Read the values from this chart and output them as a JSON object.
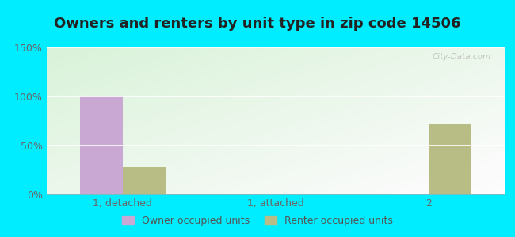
{
  "title": "Owners and renters by unit type in zip code 14506",
  "categories": [
    "1, detached",
    "1, attached",
    "2"
  ],
  "owner_values": [
    100,
    0,
    0
  ],
  "renter_values": [
    28,
    0,
    72
  ],
  "owner_color": "#c9a8d4",
  "renter_color": "#b8bc85",
  "ylim": [
    0,
    150
  ],
  "yticks": [
    0,
    50,
    100,
    150
  ],
  "ytick_labels": [
    "0%",
    "50%",
    "100%",
    "150%"
  ],
  "bar_width": 0.28,
  "background_outer": "#00ecff",
  "legend_owner": "Owner occupied units",
  "legend_renter": "Renter occupied units",
  "watermark": "City-Data.com",
  "title_fontsize": 13,
  "axis_fontsize": 9,
  "legend_fontsize": 9
}
